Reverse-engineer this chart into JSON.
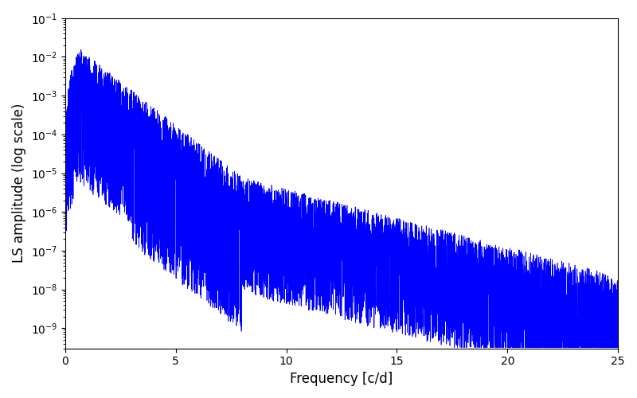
{
  "title": "",
  "xlabel": "Frequency [c/d]",
  "ylabel": "LS amplitude (log scale)",
  "xlim": [
    0,
    25
  ],
  "ylim": [
    3e-10,
    0.1
  ],
  "line_color": "blue",
  "line_width": 0.5,
  "figsize": [
    8.0,
    5.0
  ],
  "dpi": 100,
  "freq_max": 25.0,
  "seed": 12345,
  "background_color": "#ffffff"
}
